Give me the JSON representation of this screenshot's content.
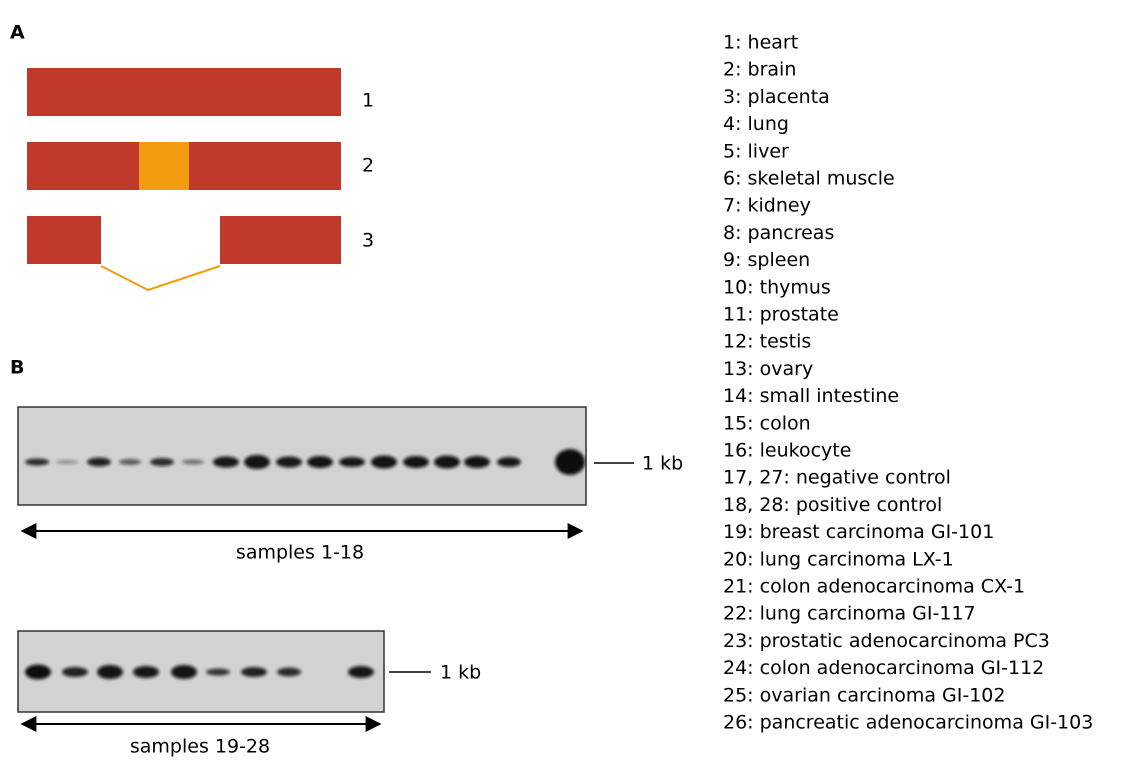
{
  "panel_a": {
    "label": "A",
    "isoforms": [
      "1",
      "2",
      "3"
    ]
  },
  "panel_b": {
    "label": "B",
    "gels": [
      {
        "marker": "1 kb",
        "caption": "samples 1-18"
      },
      {
        "marker": "1 kb",
        "caption": "samples 19-28"
      }
    ]
  },
  "legend": [
    "1: heart",
    "2: brain",
    "3: placenta",
    "4: lung",
    "5: liver",
    "6: skeletal muscle",
    "7: kidney",
    "8: pancreas",
    "9: spleen",
    "10: thymus",
    "11: prostate",
    "12: testis",
    "13: ovary",
    "14: small intestine",
    "15: colon",
    "16: leukocyte",
    "17, 27: negative control",
    "18, 28: positive control",
    "19: breast carcinoma GI-101",
    "20: lung carcinoma LX-1",
    "21: colon adenocarcinoma CX-1",
    "22: lung carcinoma GI-117",
    "23: prostatic adenocarcinoma PC3",
    "24: colon adenocarcinoma GI-112",
    "25: ovarian carcinoma GI-102",
    "26: pancreatic adenocarcinoma GI-103"
  ]
}
